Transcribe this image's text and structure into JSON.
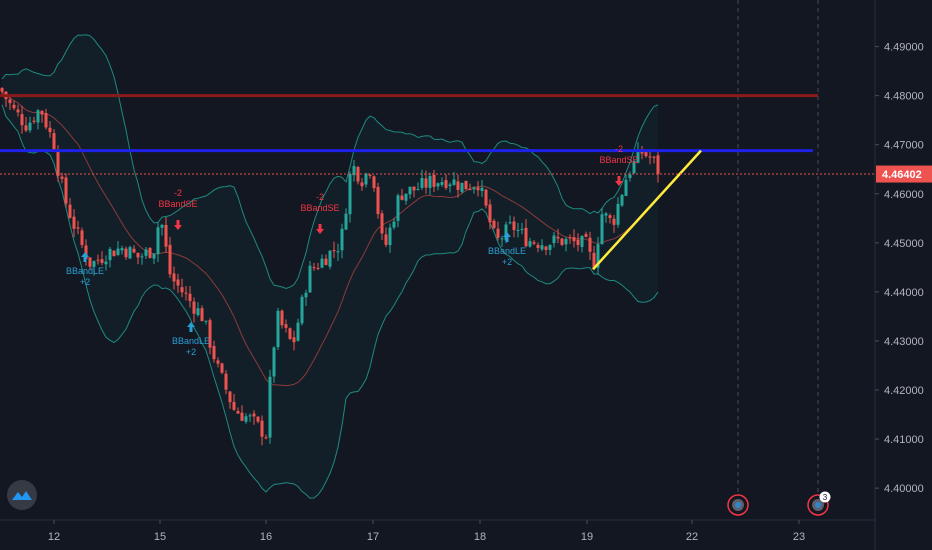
{
  "chart_data": {
    "type": "candlestick",
    "title": "",
    "xlabel": "",
    "ylabel": "",
    "ylim": [
      4.3935,
      4.4995
    ],
    "y_ticks": [
      "4.49000",
      "4.48000",
      "4.47000",
      "4.46000",
      "4.45000",
      "4.44000",
      "4.43000",
      "4.42000",
      "4.41000",
      "4.40000"
    ],
    "x_ticks": [
      "12",
      "15",
      "16",
      "17",
      "18",
      "19",
      "22",
      "23"
    ],
    "last_price": "4.46402",
    "horizontal_levels": [
      {
        "value": 4.48,
        "color": "#8b1a1a"
      },
      {
        "value": 4.4688,
        "color": "#1e22e6"
      }
    ],
    "trendline": {
      "start": [
        4.4446
      ],
      "end": [
        4.4688
      ],
      "color": "#ffeb3b"
    },
    "signals": [
      {
        "type": "long",
        "label": "BBandLE",
        "qty": "+2"
      },
      {
        "type": "long",
        "label": "BBandLE",
        "qty": "+2"
      },
      {
        "type": "long",
        "label": "BBandLE",
        "qty": "+2"
      },
      {
        "type": "short",
        "label": "BBandSE",
        "qty": "-2"
      },
      {
        "type": "short",
        "label": "BBandSE",
        "qty": "-2"
      },
      {
        "type": "short",
        "label": "BBandSE",
        "qty": "-2"
      }
    ],
    "upcoming_events": [
      {
        "icon": "event-icon",
        "count": ""
      },
      {
        "icon": "event-icon",
        "count": "3"
      }
    ],
    "colors": {
      "up": "#26a69a",
      "down": "#ef5350",
      "band": "#1e8a80",
      "basis": "#8b3a3a",
      "background": "#131722",
      "price_line": "#ef5350"
    }
  },
  "logo_icon": "tradingview-cloud-icon"
}
